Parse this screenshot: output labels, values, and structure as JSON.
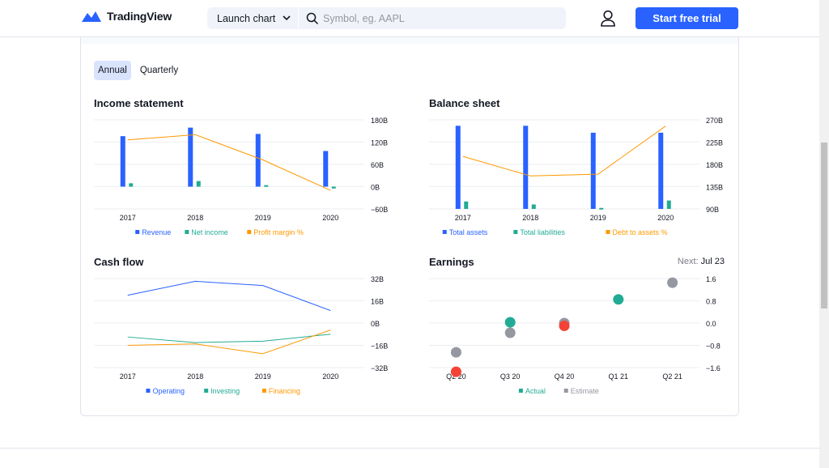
{
  "header": {
    "brand": "TradingView",
    "launch_chart": "Launch chart",
    "search_placeholder": "Symbol, eg. AAPL",
    "cta": "Start free trial",
    "accent": "#2962ff"
  },
  "tabs": [
    {
      "label": "Annual",
      "active": true
    },
    {
      "label": "Quarterly",
      "active": false
    }
  ],
  "sections": {
    "income": "Income statement",
    "balance": "Balance sheet",
    "cashflow": "Cash flow",
    "earnings": "Earnings",
    "next_label": "Next:",
    "next_date": "Jul 23"
  },
  "chart_data": [
    {
      "id": "income",
      "type": "bar",
      "title": "Income statement",
      "categories": [
        "2017",
        "2018",
        "2019",
        "2020"
      ],
      "y_ticks": [
        "180B",
        "120B",
        "60B",
        "0B",
        "−60B"
      ],
      "ylim": [
        -60,
        180
      ],
      "y2lim": [
        -3,
        9
      ],
      "series": [
        {
          "name": "Revenue",
          "kind": "bar",
          "color": "#2962ff",
          "values": [
            136,
            159,
            142,
            96
          ]
        },
        {
          "name": "Net income",
          "kind": "bar",
          "color": "#22ab94",
          "values": [
            9,
            15,
            4,
            -5
          ]
        },
        {
          "name": "Profit margin %",
          "kind": "line",
          "color": "#ff9800",
          "values": [
            6.3,
            7.0,
            3.6,
            -0.5
          ]
        }
      ]
    },
    {
      "id": "balance",
      "type": "bar",
      "title": "Balance sheet",
      "categories": [
        "2017",
        "2018",
        "2019",
        "2020"
      ],
      "y_ticks": [
        "270B",
        "225B",
        "180B",
        "135B",
        "90B"
      ],
      "ylim": [
        90,
        270
      ],
      "y2lim": [
        0,
        100
      ],
      "series": [
        {
          "name": "Total assets",
          "kind": "bar",
          "color": "#2962ff",
          "values": [
            258,
            258,
            244,
            244
          ]
        },
        {
          "name": "Total liabilities",
          "kind": "bar",
          "color": "#22ab94",
          "values": [
            105,
            99,
            92,
            107
          ]
        },
        {
          "name": "Debt to assets %",
          "kind": "line",
          "color": "#ff9800",
          "values": [
            59,
            37,
            39,
            93
          ]
        }
      ]
    },
    {
      "id": "cashflow",
      "type": "line",
      "title": "Cash flow",
      "categories": [
        "2017",
        "2018",
        "2019",
        "2020"
      ],
      "y_ticks": [
        "32B",
        "16B",
        "0B",
        "−16B",
        "−32B"
      ],
      "ylim": [
        -32,
        32
      ],
      "series": [
        {
          "name": "Operating",
          "color": "#2962ff",
          "values": [
            20,
            30,
            27,
            9
          ]
        },
        {
          "name": "Investing",
          "color": "#22ab94",
          "values": [
            -10,
            -14,
            -13,
            -8
          ]
        },
        {
          "name": "Financing",
          "color": "#ff9800",
          "values": [
            -16,
            -15,
            -22,
            -5
          ]
        }
      ]
    },
    {
      "id": "earnings",
      "type": "scatter",
      "title": "Earnings",
      "categories": [
        "Q2 20",
        "Q3 20",
        "Q4 20",
        "Q1 21",
        "Q2 21"
      ],
      "y_ticks": [
        "1.6",
        "0.8",
        "0.0",
        "−0.8",
        "−1.6"
      ],
      "ylim": [
        -1.6,
        1.6
      ],
      "series": [
        {
          "name": "Actual",
          "values": [
            -1.75,
            0.03,
            -0.1,
            0.85,
            null
          ]
        },
        {
          "name": "Estimate",
          "color": "#9598a1",
          "values": [
            -1.05,
            -0.35,
            0.0,
            null,
            1.45
          ]
        }
      ],
      "point_colors": {
        "beat": "#22ab94",
        "miss": "#f44336"
      }
    }
  ]
}
